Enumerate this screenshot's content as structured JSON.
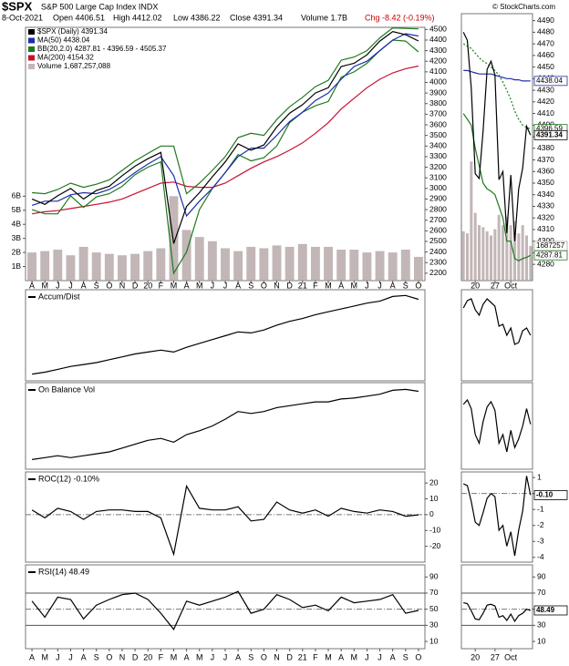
{
  "chart_data": [
    {
      "type": "line",
      "title": "$SPX",
      "subtitle": "S&P 500 Large Cap Index INDX",
      "date": "8-Oct-2021",
      "quote": [
        "Open 4406.51",
        "High 4412.02",
        "Low 4386.22",
        "Close 4391.34",
        "Volume 1.7B"
      ],
      "change": "Chg -8.42 (-0.19%)",
      "source": "© StockCharts.com",
      "categories": [
        "A",
        "M",
        "J",
        "J",
        "A",
        "S",
        "O",
        "N",
        "D",
        "20",
        "F",
        "M",
        "A",
        "M",
        "J",
        "J",
        "A",
        "S",
        "O",
        "N",
        "D",
        "21",
        "F",
        "M",
        "A",
        "M",
        "J",
        "J",
        "A",
        "S",
        "O"
      ],
      "ylim": [
        2130,
        4520
      ],
      "yticks": [
        2200,
        2300,
        2400,
        2500,
        2600,
        2700,
        2800,
        2900,
        3000,
        3100,
        3200,
        3300,
        3400,
        3500,
        3600,
        3700,
        3800,
        3900,
        4000,
        4100,
        4200,
        4300,
        4400,
        4500
      ],
      "y2lim": [
        0,
        18
      ],
      "y2ticks": [
        {
          "value": 1,
          "label": "1B"
        },
        {
          "value": 2,
          "label": "2B"
        },
        {
          "value": 3,
          "label": "3B"
        },
        {
          "value": 4,
          "label": "4B"
        },
        {
          "value": 5,
          "label": "5B"
        },
        {
          "value": 6,
          "label": "6B"
        }
      ],
      "series": [
        {
          "name": "Volume 1,687,257,088",
          "mark": "bar",
          "axis": "y2",
          "color": "#b4a4a4",
          "values": [
            2.0,
            2.1,
            2.2,
            1.8,
            2.4,
            2.0,
            1.9,
            1.8,
            1.9,
            2.1,
            2.3,
            6.0,
            3.6,
            3.1,
            2.8,
            2.3,
            2.1,
            2.4,
            2.3,
            2.5,
            2.4,
            2.6,
            2.4,
            2.4,
            2.2,
            2.2,
            2.0,
            2.1,
            2.0,
            2.2,
            1.687257088
          ]
        },
        {
          "name": "MA(200) 4154.32",
          "color": "#c8102e",
          "values": [
            2760,
            2780,
            2790,
            2810,
            2830,
            2850,
            2870,
            2900,
            2950,
            3000,
            3050,
            3060,
            3020,
            3010,
            3010,
            3050,
            3120,
            3190,
            3250,
            3300,
            3360,
            3430,
            3520,
            3620,
            3750,
            3850,
            3950,
            4030,
            4090,
            4130,
            4154.32
          ]
        },
        {
          "name": "BB(20,2.0) 4287.81 - 4396.59 - 4505.37",
          "color": "#1e7a1e",
          "values": [
            2960,
            2950,
            2990,
            3050,
            3010,
            3040,
            3080,
            3170,
            3260,
            3330,
            3400,
            3400,
            2950,
            3050,
            3170,
            3300,
            3480,
            3520,
            3500,
            3650,
            3770,
            3860,
            3960,
            4020,
            4210,
            4240,
            4300,
            4420,
            4515,
            4510,
            4505.37
          ]
        },
        {
          "color": "#1e7a1e",
          "values": [
            2800,
            2760,
            2760,
            2930,
            2820,
            2920,
            2950,
            3020,
            3130,
            3200,
            3250,
            2200,
            2400,
            2800,
            3000,
            3150,
            3320,
            3260,
            3290,
            3400,
            3620,
            3720,
            3780,
            3820,
            4050,
            4100,
            4180,
            4300,
            4400,
            4390,
            4287.81
          ]
        },
        {
          "name": "MA(50) 4438.04",
          "color": "#1c2fa8",
          "values": [
            2840,
            2880,
            2880,
            2940,
            2960,
            2950,
            2990,
            3060,
            3150,
            3230,
            3300,
            3120,
            2740,
            2880,
            3000,
            3150,
            3300,
            3380,
            3380,
            3500,
            3630,
            3720,
            3830,
            3900,
            4030,
            4150,
            4200,
            4300,
            4400,
            4460,
            4438.04
          ]
        },
        {
          "name": "$SPX (Daily) 4391.34",
          "color": "#000000",
          "values": [
            2900,
            2850,
            2930,
            3000,
            2900,
            2980,
            3020,
            3120,
            3210,
            3280,
            3340,
            2480,
            2830,
            2960,
            3110,
            3250,
            3420,
            3360,
            3410,
            3580,
            3710,
            3790,
            3900,
            3950,
            4150,
            4180,
            4260,
            4390,
            4480,
            4450,
            4391.34
          ]
        }
      ]
    },
    {
      "type": "line",
      "title": "Accum/Dist",
      "ylim": [
        5,
        100
      ],
      "series": [
        {
          "color": "#000000",
          "values": [
            12,
            14,
            17,
            20,
            22,
            24,
            27,
            30,
            33,
            35,
            37,
            35,
            40,
            44,
            48,
            52,
            56,
            55,
            58,
            63,
            67,
            70,
            74,
            77,
            80,
            83,
            86,
            88,
            93,
            94,
            90
          ]
        }
      ]
    },
    {
      "type": "line",
      "title": "On Balance Vol",
      "ylim": [
        10,
        100
      ],
      "series": [
        {
          "color": "#000000",
          "values": [
            20,
            22,
            24,
            22,
            24,
            26,
            28,
            32,
            36,
            40,
            42,
            38,
            46,
            50,
            55,
            62,
            70,
            68,
            70,
            74,
            76,
            78,
            80,
            80,
            83,
            84,
            86,
            88,
            92,
            93,
            91
          ]
        }
      ]
    },
    {
      "type": "line",
      "title": "ROC(12) -0.10%",
      "ylim": [
        -30,
        27
      ],
      "yticks": [
        -20,
        -10,
        0,
        10,
        20
      ],
      "dashed_hlines": [
        0
      ],
      "series": [
        {
          "color": "#000000",
          "values": [
            3,
            -2,
            4,
            2,
            -3,
            2,
            3,
            3,
            2,
            2,
            -2,
            -25,
            18,
            4,
            3,
            3,
            5,
            -4,
            -3,
            8,
            3,
            1,
            3,
            -1,
            4,
            2,
            1,
            3,
            2,
            -1,
            -0.1
          ]
        }
      ]
    },
    {
      "type": "line",
      "title": "RSI(14) 48.49",
      "ylim": [
        1,
        105
      ],
      "yticks": [
        10,
        30,
        50,
        70,
        90
      ],
      "hlines": [
        30,
        70
      ],
      "dashed_hlines": [
        50
      ],
      "categories": [
        "A",
        "M",
        "J",
        "J",
        "A",
        "S",
        "O",
        "N",
        "D",
        "20",
        "F",
        "M",
        "A",
        "M",
        "J",
        "J",
        "A",
        "S",
        "O",
        "N",
        "D",
        "21",
        "F",
        "M",
        "A",
        "M",
        "J",
        "J",
        "A",
        "S",
        "O"
      ],
      "series": [
        {
          "color": "#000000",
          "values": [
            60,
            40,
            65,
            62,
            38,
            55,
            62,
            68,
            70,
            62,
            45,
            25,
            60,
            55,
            60,
            65,
            72,
            45,
            50,
            68,
            62,
            52,
            55,
            48,
            65,
            58,
            60,
            62,
            68,
            45,
            48.49
          ]
        }
      ]
    },
    {
      "type": "line",
      "ylim": [
        4266,
        4496
      ],
      "yticks": [
        4280,
        4290,
        4300,
        4310,
        4320,
        4330,
        4340,
        4350,
        4360,
        4370,
        4380,
        4390,
        4400,
        4410,
        4420,
        4430,
        4440,
        4450,
        4460,
        4470,
        4480,
        4490
      ],
      "y2lim": [
        0,
        13000000
      ],
      "categories": [
        null,
        null,
        null,
        "20",
        null,
        null,
        null,
        null,
        "27",
        null,
        null,
        null,
        "Oct",
        null,
        null,
        null,
        null,
        null
      ],
      "series": [
        {
          "mark": "bar",
          "axis": "y2",
          "color": "#b4a4a4",
          "values": [
            2400000,
            2300000,
            5800000,
            3300000,
            2700000,
            2600000,
            2400000,
            2200000,
            2500000,
            3200000,
            2700000,
            3100000,
            2700000,
            2900000,
            2300000,
            2700000,
            2200000,
            1687257
          ],
          "end_label": 1687257
        },
        {
          "color": "#1c2fa8",
          "values": [
            4447,
            4447,
            4446,
            4445,
            4444,
            4444,
            4444,
            4444,
            4443,
            4442,
            4441,
            4440,
            4440,
            4439,
            4439,
            4438,
            4438,
            4438.04
          ],
          "end_label": 4438.04
        },
        {
          "color": "#1e7a1e",
          "dash": true,
          "values": [
            4470,
            4468,
            4466,
            4462,
            4458,
            4455,
            4453,
            4450,
            4447,
            4443,
            4437,
            4430,
            4422,
            4412,
            4405,
            4400,
            4398,
            4396.59
          ],
          "end_label": 4396.59
        },
        {
          "color": "#1e7a1e",
          "values": [
            4410,
            4405,
            4400,
            4380,
            4365,
            4350,
            4345,
            4343,
            4340,
            4330,
            4320,
            4300,
            4300,
            4285,
            4283,
            4285,
            4286,
            4287.81
          ],
          "end_label": 4287.81
        },
        {
          "color": "#000000",
          "values": [
            4480,
            4473,
            4432,
            4358,
            4354,
            4395,
            4448,
            4455,
            4443,
            4353,
            4360,
            4307,
            4357,
            4300,
            4345,
            4363,
            4399,
            4391.34
          ],
          "end_label": 4391.34
        }
      ]
    },
    {
      "type": "line",
      "ylim": [
        0,
        100
      ],
      "series": [
        {
          "color": "#000000",
          "values": [
            80,
            88,
            90,
            78,
            72,
            84,
            90,
            86,
            82,
            60,
            62,
            50,
            58,
            40,
            42,
            55,
            58,
            50
          ]
        }
      ]
    },
    {
      "type": "line",
      "ylim": [
        0,
        100
      ],
      "series": [
        {
          "color": "#000000",
          "values": [
            75,
            80,
            70,
            40,
            30,
            55,
            72,
            78,
            68,
            30,
            40,
            20,
            45,
            25,
            35,
            50,
            70,
            52
          ]
        }
      ]
    },
    {
      "type": "line",
      "ylim": [
        -4.3,
        1.35
      ],
      "yticks": [
        -4,
        -3,
        -2,
        -1,
        0,
        1
      ],
      "dashed_hlines": [
        0
      ],
      "series": [
        {
          "color": "#000000",
          "values": [
            0.6,
            0.5,
            -0.5,
            -1.8,
            -2.0,
            -1.2,
            -0.3,
            0.0,
            -0.2,
            -2.3,
            -2.0,
            -3.3,
            -2.4,
            -3.9,
            -2.3,
            -1.1,
            1.1,
            -0.1
          ],
          "end_label": {
            "value": -0.1,
            "label": "-0.10"
          }
        }
      ]
    },
    {
      "type": "line",
      "ylim": [
        1,
        105
      ],
      "yticks": [
        10,
        30,
        50,
        70,
        90
      ],
      "hlines": [
        30,
        70
      ],
      "dashed_hlines": [
        50
      ],
      "categories": [
        null,
        null,
        null,
        "20",
        null,
        null,
        null,
        null,
        "27",
        null,
        null,
        null,
        "Oct",
        null,
        null,
        null,
        null,
        null
      ],
      "series": [
        {
          "color": "#000000",
          "values": [
            58,
            57,
            48,
            38,
            37,
            45,
            55,
            56,
            54,
            40,
            42,
            36,
            44,
            35,
            42,
            45,
            50,
            48.49
          ],
          "end_label": 48.49
        }
      ]
    }
  ]
}
